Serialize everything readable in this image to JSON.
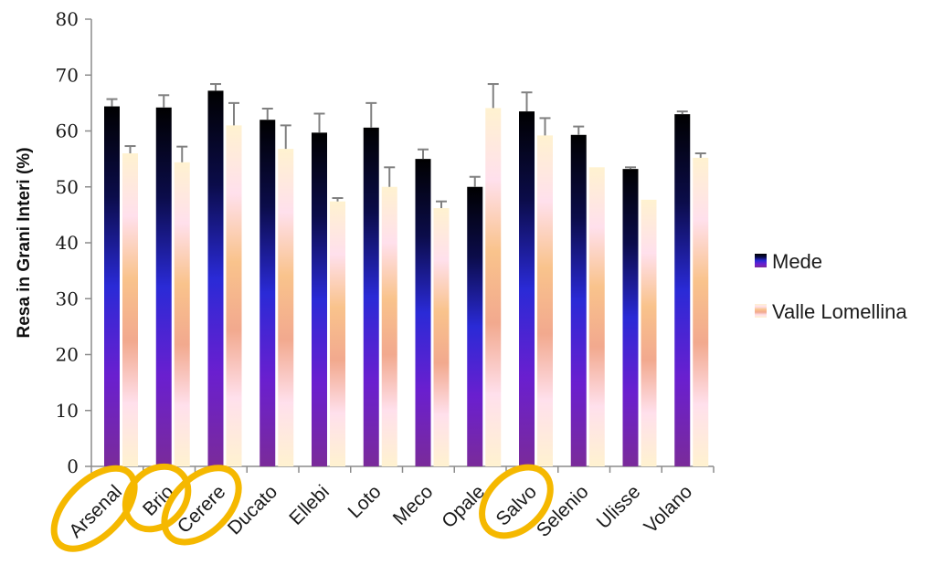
{
  "chart_data": {
    "type": "bar",
    "ylabel": "Resa in Grani Interi (%)",
    "xlabel": "",
    "ylim": [
      0,
      80
    ],
    "yticks": [
      0,
      10,
      20,
      30,
      40,
      50,
      60,
      70,
      80
    ],
    "grid": false,
    "legend_position": "right",
    "categories": [
      "Arsenal",
      "Brio",
      "Cerere",
      "Ducato",
      "Ellebi",
      "Loto",
      "Meco",
      "Opale",
      "Salvo",
      "Selenio",
      "Ulisse",
      "Volano"
    ],
    "highlighted_categories": [
      "Arsenal",
      "Brio",
      "Cerere",
      "Salvo"
    ],
    "highlight_color": "#f5b800",
    "series": [
      {
        "name": "Mede",
        "values": [
          64.4,
          64.2,
          67.2,
          62.0,
          59.7,
          60.6,
          55.0,
          50.0,
          63.5,
          59.3,
          53.2,
          63.0
        ],
        "error": [
          1.3,
          2.2,
          1.2,
          2.0,
          3.4,
          4.4,
          1.7,
          1.8,
          3.4,
          1.5,
          0.3,
          0.5
        ],
        "gradient": [
          "#000000",
          "#0b0c4a",
          "#2a2ad6",
          "#6a1fcf",
          "#7a2b9a"
        ]
      },
      {
        "name": "Valle Lomellina",
        "values": [
          56.0,
          54.4,
          61.0,
          56.8,
          47.4,
          50.0,
          46.2,
          64.1,
          59.2,
          53.5,
          47.7,
          55.2
        ],
        "error": [
          1.3,
          2.8,
          4.0,
          4.2,
          0.6,
          3.5,
          1.2,
          4.3,
          3.1,
          0.0,
          0.0,
          0.8
        ],
        "gradient": [
          "#fff2d0",
          "#ffe0ec",
          "#f9c38c",
          "#f2a98e",
          "#ffe0ec",
          "#fff2d0"
        ]
      }
    ]
  }
}
